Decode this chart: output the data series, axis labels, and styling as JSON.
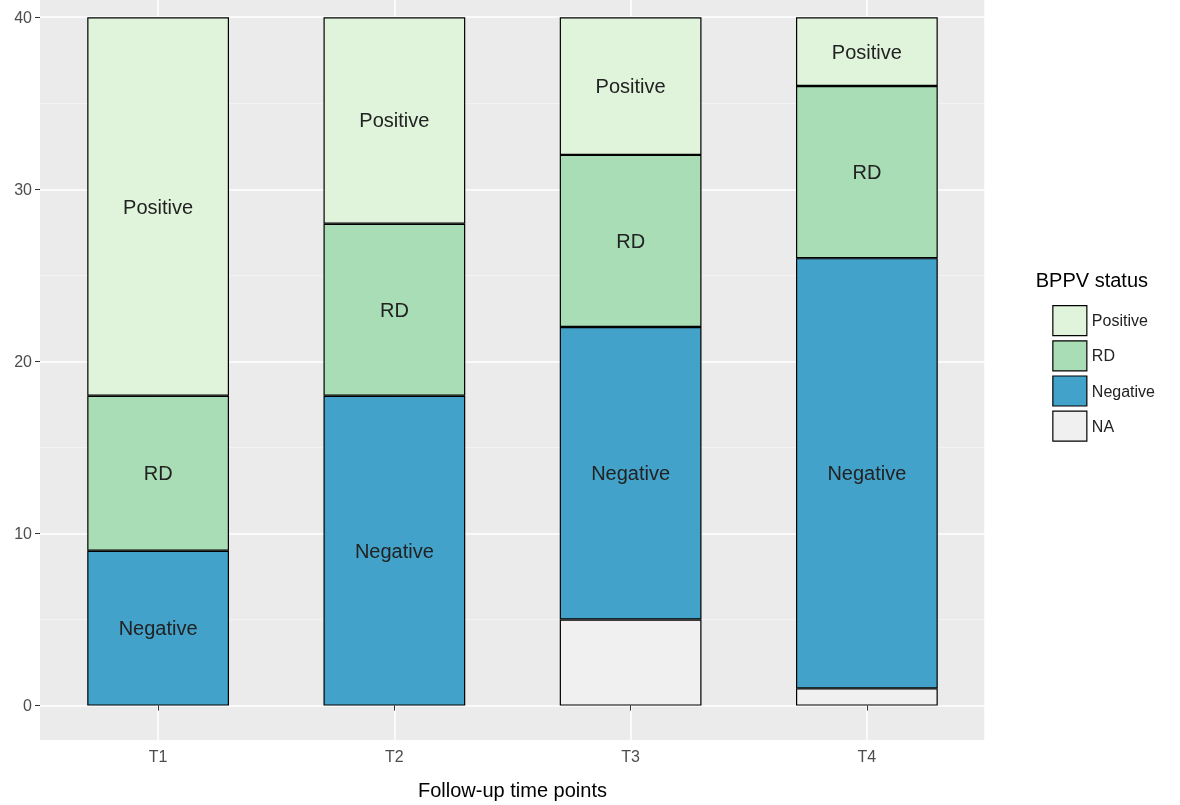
{
  "chart_data": {
    "type": "bar",
    "stacked": true,
    "xlabel": "Follow-up time points",
    "legend_title": "BPPV status",
    "categories": [
      "T1",
      "T2",
      "T3",
      "T4"
    ],
    "series": [
      {
        "name": "NA",
        "color": "#f0f0f0",
        "values": [
          0,
          0,
          5,
          1
        ]
      },
      {
        "name": "Negative",
        "color": "#43a2ca",
        "values": [
          9,
          18,
          17,
          25
        ],
        "value_labels": [
          "Negative",
          "Negative",
          "Negative",
          "Negative"
        ]
      },
      {
        "name": "RD",
        "color": "#a8ddb5",
        "values": [
          9,
          10,
          10,
          10
        ],
        "value_labels": [
          "RD",
          "RD",
          "RD",
          "RD"
        ]
      },
      {
        "name": "Positive",
        "color": "#e0f3db",
        "values": [
          22,
          12,
          8,
          4
        ],
        "value_labels": [
          "Positive",
          "Positive",
          "Positive",
          "Positive"
        ]
      }
    ],
    "ylim": [
      -2,
      41
    ],
    "yticks": [
      0,
      10,
      20,
      30,
      40
    ],
    "grid": true,
    "legend": "right"
  }
}
